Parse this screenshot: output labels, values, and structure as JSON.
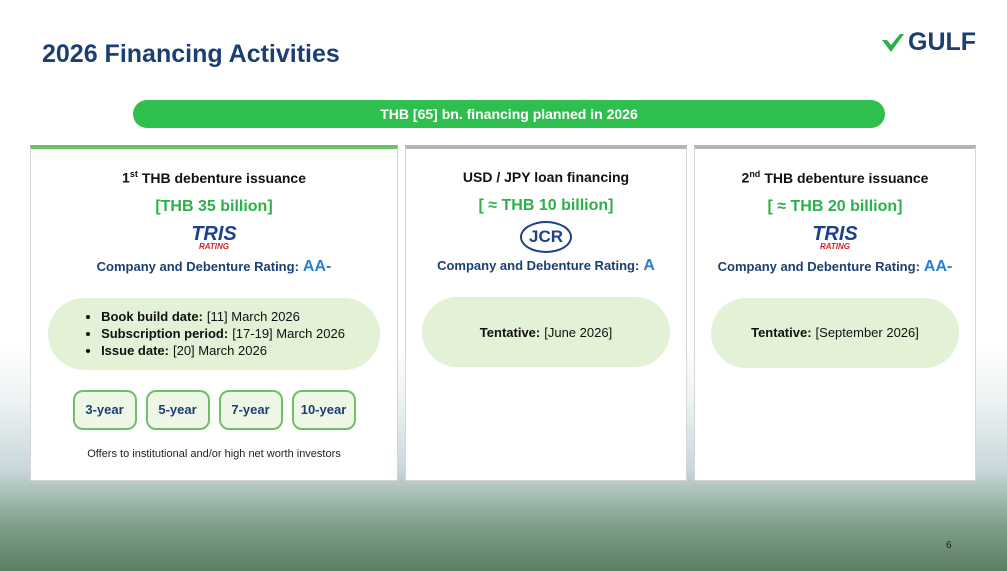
{
  "header": {
    "title": "2026 Financing Activities",
    "logo": "GULF"
  },
  "banner": "THB [65] bn. financing planned in 2026",
  "cards": [
    {
      "heading": {
        "number": "1",
        "suffix": "st",
        "text": "THB debenture issuance"
      },
      "amount": "[THB 35 billion]",
      "agency": {
        "name": "TRIS",
        "sub": "RATING"
      },
      "rating_label": "Company and Debenture Rating:",
      "rating": "AA-",
      "details": [
        {
          "label": "Book build date:",
          "value": "[11] March 2026"
        },
        {
          "label": "Subscription period:",
          "value": "[17-19] March 2026"
        },
        {
          "label": "Issue date:",
          "value": "[20] March 2026"
        }
      ],
      "tenors": [
        "3-year",
        "5-year",
        "7-year",
        "10-year"
      ],
      "note": "Offers to institutional and/or high net worth investors"
    },
    {
      "heading": {
        "text": "USD / JPY loan financing"
      },
      "amount": "[ ≈ THB 10 billion]",
      "agency": {
        "name": "JCR"
      },
      "rating_label": "Company and Debenture Rating:",
      "rating": "A",
      "tentative": {
        "label": "Tentative:",
        "value": "[June 2026]"
      }
    },
    {
      "heading": {
        "number": "2",
        "suffix": "nd",
        "text": "THB debenture issuance"
      },
      "amount": "[ ≈ THB 20 billion]",
      "agency": {
        "name": "TRIS",
        "sub": "RATING"
      },
      "rating_label": "Company and Debenture Rating:",
      "rating": "AA-",
      "tentative": {
        "label": "Tentative:",
        "value": "[September 2026]"
      }
    }
  ],
  "page_number": "6"
}
